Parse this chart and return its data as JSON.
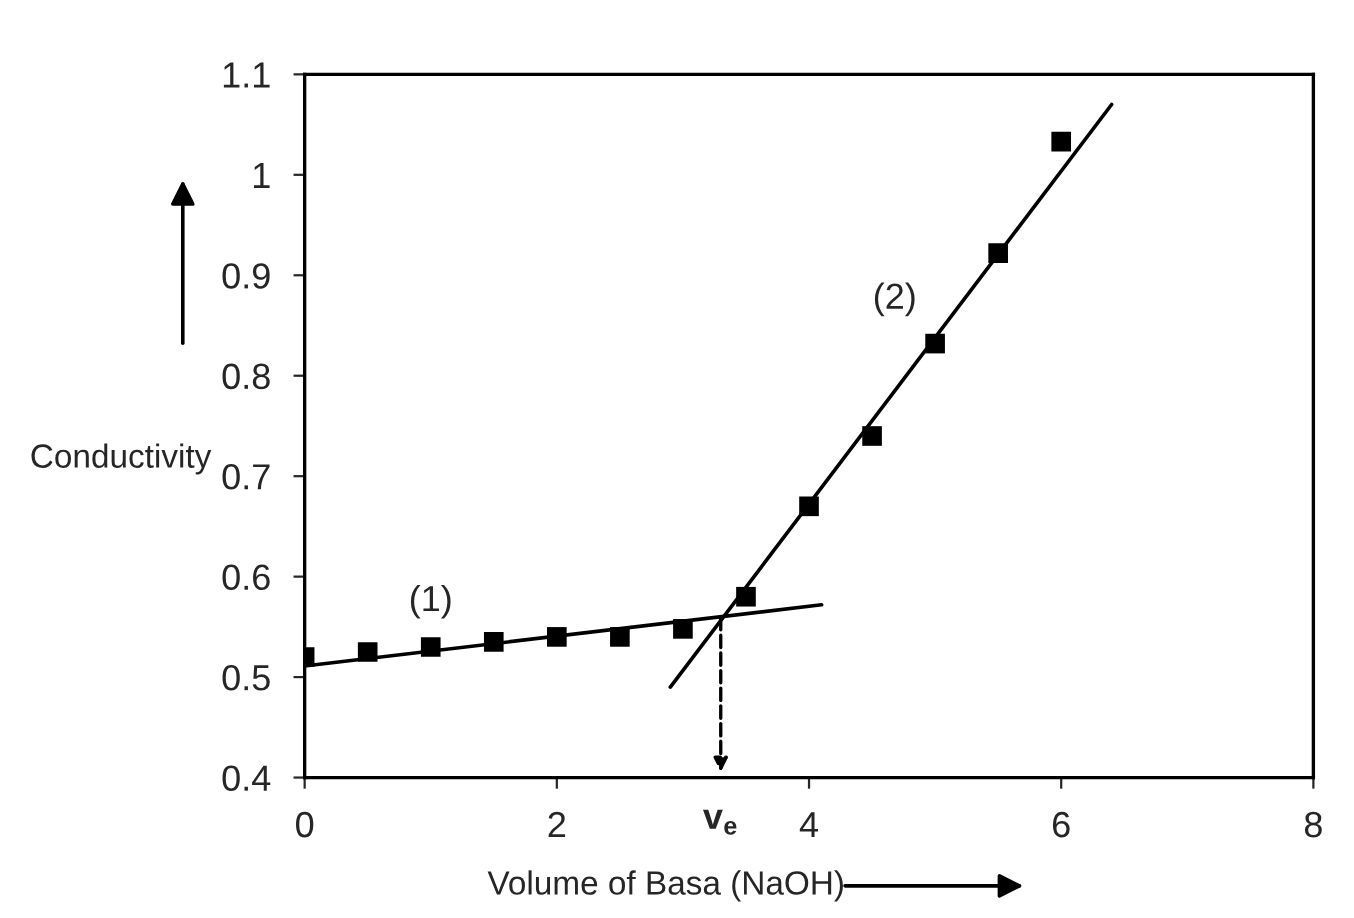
{
  "chart_data": {
    "type": "scatter",
    "xlabel": "Volume of Basa (NaOH)",
    "ylabel": "Conductivity",
    "xlim": [
      0,
      8
    ],
    "xticks": [
      0,
      2,
      4,
      6,
      8
    ],
    "ylim": [
      0.4,
      1.1
    ],
    "yticks": [
      0.4,
      0.5,
      0.6,
      0.7,
      0.8,
      0.9,
      1,
      1.1
    ],
    "grid": false,
    "series": [
      {
        "color": "#000000",
        "marker": "square",
        "x": [
          0,
          0.5,
          1,
          1.5,
          2,
          2.5,
          3,
          3.5,
          4,
          4.5,
          5,
          5.5,
          6
        ],
        "values": [
          0.52,
          0.525,
          0.53,
          0.535,
          0.54,
          0.54,
          0.548,
          0.58,
          0.67,
          0.74,
          0.832,
          0.922,
          1.033
        ]
      },
      {
        "type": "line",
        "color": "#000000",
        "x": [
          0,
          4.1
        ],
        "values": [
          0.511,
          0.572
        ]
      },
      {
        "type": "line",
        "color": "#000000",
        "x": [
          2.9,
          6.4
        ],
        "values": [
          0.49,
          1.07
        ]
      }
    ],
    "annotations": [
      "(1)",
      "(2)",
      {
        "text": "v$_{e}$",
        "x": 3.3,
        "y": 0.565
      }
    ]
  }
}
